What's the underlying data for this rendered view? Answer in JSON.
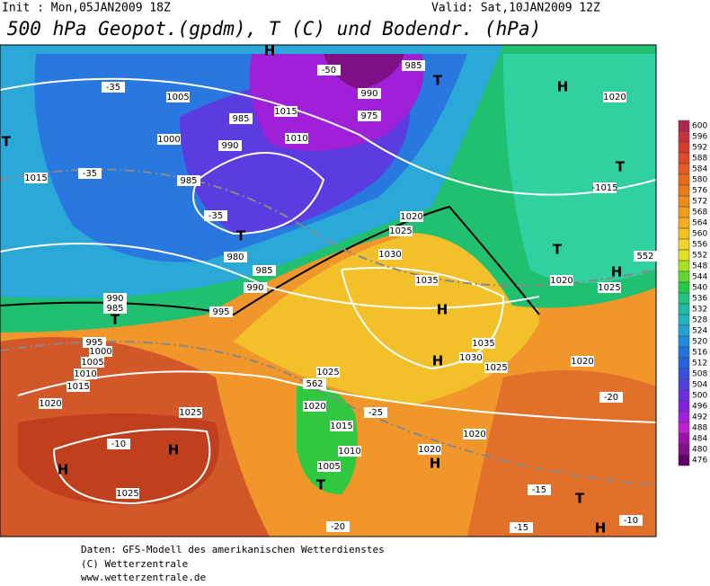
{
  "header": {
    "init": "Init : Mon,05JAN2009 18Z",
    "valid": "Valid: Sat,10JAN2009 12Z",
    "title": "500 hPa Geopot.(gpdm), T (C) und Bodendr. (hPa)"
  },
  "colorbar": {
    "levels": [
      600,
      596,
      592,
      588,
      584,
      580,
      576,
      572,
      568,
      564,
      560,
      556,
      552,
      548,
      544,
      540,
      536,
      532,
      528,
      524,
      520,
      516,
      512,
      508,
      504,
      500,
      496,
      492,
      488,
      484,
      480,
      476
    ],
    "colors": [
      "#b02850",
      "#c83040",
      "#d83a30",
      "#e04a28",
      "#e85a20",
      "#ec6a1c",
      "#f07a18",
      "#f08a18",
      "#f49c1c",
      "#f4ae20",
      "#f4c020",
      "#f2d428",
      "#e4e020",
      "#a8e020",
      "#60d830",
      "#20cc40",
      "#20c47c",
      "#20bca0",
      "#20b4c0",
      "#20a4d4",
      "#208ce0",
      "#2074e0",
      "#2860e0",
      "#3850e0",
      "#5040e0",
      "#6830e0",
      "#8020e0",
      "#a020e0",
      "#c020d0",
      "#a010a8",
      "#801088",
      "#600068"
    ]
  },
  "map": {
    "labels": [
      "H",
      "-50",
      "985",
      "T",
      "H",
      "1020",
      "1005",
      "-35",
      "1015",
      "985",
      "990",
      "975",
      "1010",
      "1000",
      "990",
      "T",
      "1015",
      "-35",
      "985",
      "-35",
      "T",
      "980",
      "985",
      "990",
      "1020",
      "1025",
      "1030",
      "1035",
      "H",
      "1035",
      "1030",
      "H",
      "1025",
      "1020",
      "T",
      "-1015",
      "T",
      "1020",
      "1025",
      "H",
      "552",
      "990",
      "985",
      "T",
      "995",
      "995",
      "1000",
      "1005",
      "1010",
      "1015",
      "1020",
      "1025",
      "H",
      "H",
      "-10",
      "1025",
      "562",
      "1025",
      "1020",
      "1015",
      "1010",
      "1005",
      "T",
      "1020",
      "H",
      "1020",
      "-25",
      "T",
      "H",
      "-15",
      "-20",
      "-10",
      "-15",
      "-20"
    ]
  },
  "footer": {
    "lines": [
      "Daten: GFS-Modell des amerikanischen Wetterdienstes",
      "(C) Wetterzentrale",
      "www.wetterzentrale.de"
    ]
  }
}
